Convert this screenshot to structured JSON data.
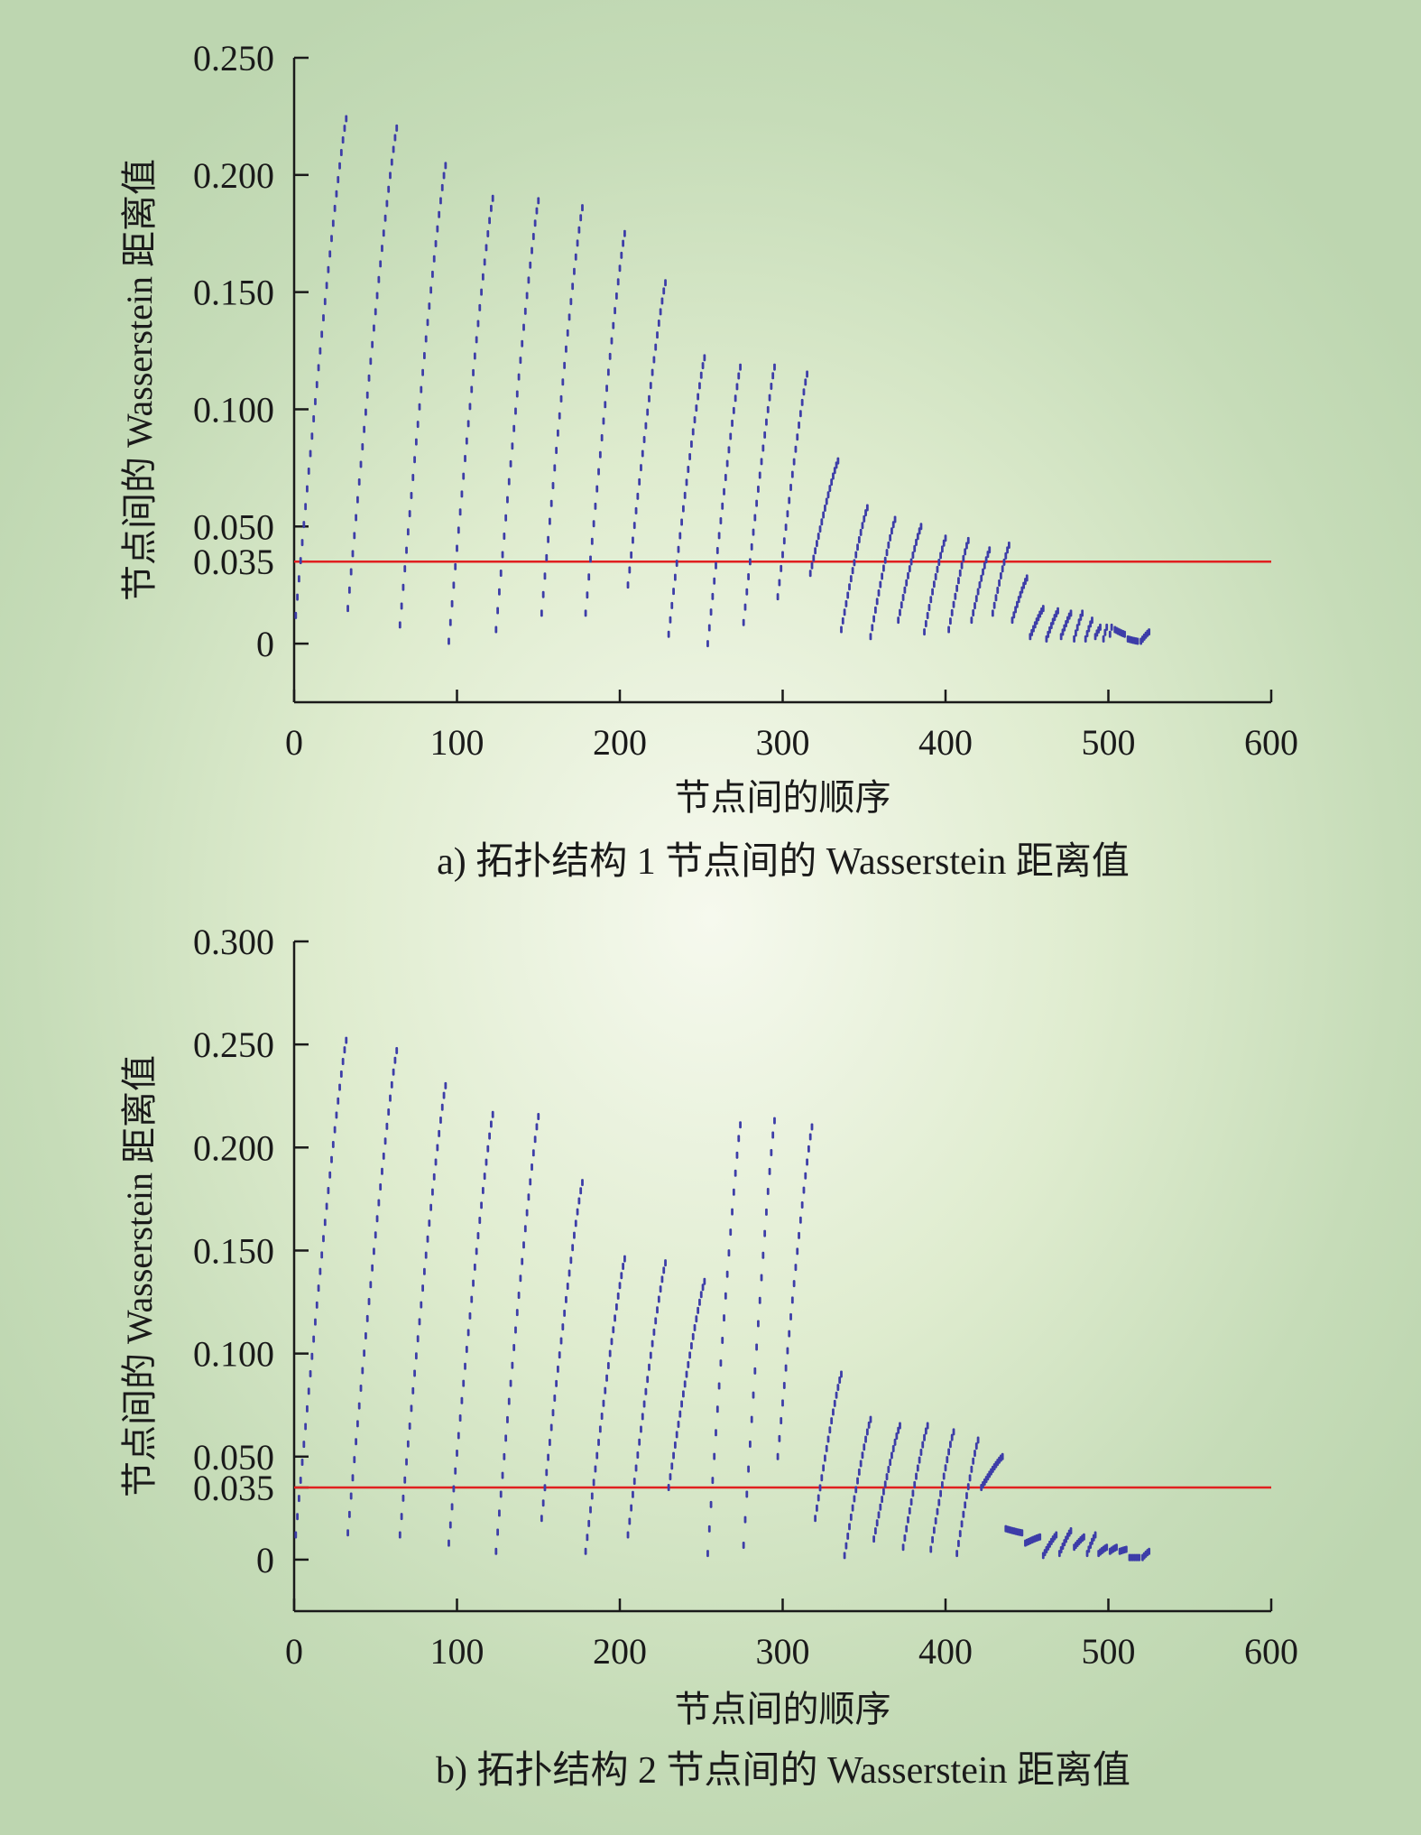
{
  "colors": {
    "point": "#3d3da8",
    "threshold": "#e02020",
    "axis": "#1a1a1a"
  },
  "chart_data": [
    {
      "type": "scatter",
      "caption": "a) 拓扑结构 1 节点间的 Wasserstein 距离值",
      "xlabel": "节点间的顺序",
      "ylabel": "节点间的 Wasserstein 距离值",
      "xlim": [
        0,
        600
      ],
      "ylim": [
        -0.025,
        0.25
      ],
      "xticks": [
        0,
        100,
        200,
        300,
        400,
        500,
        600
      ],
      "xtick_labels": [
        "0",
        "100",
        "200",
        "300",
        "400",
        "500",
        "600"
      ],
      "yticks": [
        0,
        0.035,
        0.05,
        0.1,
        0.15,
        0.2,
        0.25
      ],
      "ytick_labels": [
        "0",
        "0.035",
        "0.050",
        "0.100",
        "0.150",
        "0.200",
        "0.250"
      ],
      "threshold": 0.035,
      "grid": false,
      "segments": [
        {
          "x_start": 1,
          "x_end": 32,
          "y_start": 0.012,
          "y_peak": 0.224
        },
        {
          "x_start": 33,
          "x_end": 63,
          "y_start": 0.015,
          "y_peak": 0.22
        },
        {
          "x_start": 65,
          "x_end": 93,
          "y_start": 0.008,
          "y_peak": 0.204
        },
        {
          "x_start": 95,
          "x_end": 122,
          "y_start": 0.001,
          "y_peak": 0.19
        },
        {
          "x_start": 124,
          "x_end": 150,
          "y_start": 0.006,
          "y_peak": 0.189
        },
        {
          "x_start": 152,
          "x_end": 177,
          "y_start": 0.013,
          "y_peak": 0.186
        },
        {
          "x_start": 179,
          "x_end": 203,
          "y_start": 0.013,
          "y_peak": 0.175
        },
        {
          "x_start": 205,
          "x_end": 228,
          "y_start": 0.025,
          "y_peak": 0.154
        },
        {
          "x_start": 230,
          "x_end": 252,
          "y_start": 0.004,
          "y_peak": 0.122
        },
        {
          "x_start": 254,
          "x_end": 274,
          "y_start": 0.0,
          "y_peak": 0.118
        },
        {
          "x_start": 276,
          "x_end": 295,
          "y_start": 0.009,
          "y_peak": 0.118
        },
        {
          "x_start": 297,
          "x_end": 315,
          "y_start": 0.02,
          "y_peak": 0.115
        },
        {
          "x_start": 317,
          "x_end": 334,
          "y_start": 0.03,
          "y_peak": 0.078
        },
        {
          "x_start": 336,
          "x_end": 352,
          "y_start": 0.006,
          "y_peak": 0.058
        },
        {
          "x_start": 354,
          "x_end": 369,
          "y_start": 0.003,
          "y_peak": 0.053
        },
        {
          "x_start": 371,
          "x_end": 385,
          "y_start": 0.01,
          "y_peak": 0.05
        },
        {
          "x_start": 387,
          "x_end": 400,
          "y_start": 0.005,
          "y_peak": 0.045
        },
        {
          "x_start": 402,
          "x_end": 414,
          "y_start": 0.006,
          "y_peak": 0.044
        },
        {
          "x_start": 416,
          "x_end": 427,
          "y_start": 0.01,
          "y_peak": 0.04
        },
        {
          "x_start": 429,
          "x_end": 439,
          "y_start": 0.013,
          "y_peak": 0.042
        },
        {
          "x_start": 441,
          "x_end": 450,
          "y_start": 0.01,
          "y_peak": 0.028
        },
        {
          "x_start": 452,
          "x_end": 460,
          "y_start": 0.003,
          "y_peak": 0.015
        },
        {
          "x_start": 462,
          "x_end": 469,
          "y_start": 0.002,
          "y_peak": 0.014
        },
        {
          "x_start": 471,
          "x_end": 477,
          "y_start": 0.003,
          "y_peak": 0.013
        },
        {
          "x_start": 479,
          "x_end": 484,
          "y_start": 0.002,
          "y_peak": 0.013
        },
        {
          "x_start": 486,
          "x_end": 490,
          "y_start": 0.002,
          "y_peak": 0.01
        },
        {
          "x_start": 492,
          "x_end": 495,
          "y_start": 0.003,
          "y_peak": 0.007
        },
        {
          "x_start": 497,
          "x_end": 499,
          "y_start": 0.002,
          "y_peak": 0.007
        },
        {
          "x_start": 501,
          "x_end": 502,
          "y_start": 0.004,
          "y_peak": 0.007
        },
        {
          "x_start": 504,
          "x_end": 510,
          "y_start": 0.006,
          "y_peak": 0.004
        },
        {
          "x_start": 512,
          "x_end": 518,
          "y_start": 0.002,
          "y_peak": 0.001
        },
        {
          "x_start": 520,
          "x_end": 525,
          "y_start": 0.001,
          "y_peak": 0.005
        }
      ]
    },
    {
      "type": "scatter",
      "caption": "b) 拓扑结构 2 节点间的 Wasserstein 距离值",
      "xlabel": "节点间的顺序",
      "ylabel": "节点间的 Wasserstein 距离值",
      "xlim": [
        0,
        600
      ],
      "ylim": [
        -0.025,
        0.3
      ],
      "xticks": [
        0,
        100,
        200,
        300,
        400,
        500,
        600
      ],
      "xtick_labels": [
        "0",
        "100",
        "200",
        "300",
        "400",
        "500",
        "600"
      ],
      "yticks": [
        0,
        0.035,
        0.05,
        0.1,
        0.15,
        0.2,
        0.25,
        0.3
      ],
      "ytick_labels": [
        "0",
        "0.035",
        "0.050",
        "0.100",
        "0.150",
        "0.200",
        "0.250",
        "0.300"
      ],
      "threshold": 0.035,
      "grid": false,
      "segments": [
        {
          "x_start": 1,
          "x_end": 32,
          "y_start": 0.012,
          "y_peak": 0.252
        },
        {
          "x_start": 33,
          "x_end": 63,
          "y_start": 0.013,
          "y_peak": 0.247
        },
        {
          "x_start": 65,
          "x_end": 93,
          "y_start": 0.012,
          "y_peak": 0.23
        },
        {
          "x_start": 95,
          "x_end": 122,
          "y_start": 0.008,
          "y_peak": 0.216
        },
        {
          "x_start": 124,
          "x_end": 150,
          "y_start": 0.004,
          "y_peak": 0.215
        },
        {
          "x_start": 152,
          "x_end": 177,
          "y_start": 0.02,
          "y_peak": 0.183
        },
        {
          "x_start": 179,
          "x_end": 203,
          "y_start": 0.004,
          "y_peak": 0.146
        },
        {
          "x_start": 205,
          "x_end": 228,
          "y_start": 0.012,
          "y_peak": 0.144
        },
        {
          "x_start": 230,
          "x_end": 252,
          "y_start": 0.035,
          "y_peak": 0.135
        },
        {
          "x_start": 254,
          "x_end": 274,
          "y_start": 0.003,
          "y_peak": 0.211
        },
        {
          "x_start": 276,
          "x_end": 295,
          "y_start": 0.007,
          "y_peak": 0.213
        },
        {
          "x_start": 297,
          "x_end": 318,
          "y_start": 0.05,
          "y_peak": 0.21
        },
        {
          "x_start": 320,
          "x_end": 336,
          "y_start": 0.02,
          "y_peak": 0.09
        },
        {
          "x_start": 338,
          "x_end": 354,
          "y_start": 0.002,
          "y_peak": 0.068
        },
        {
          "x_start": 356,
          "x_end": 372,
          "y_start": 0.01,
          "y_peak": 0.065
        },
        {
          "x_start": 374,
          "x_end": 389,
          "y_start": 0.006,
          "y_peak": 0.065
        },
        {
          "x_start": 391,
          "x_end": 405,
          "y_start": 0.005,
          "y_peak": 0.062
        },
        {
          "x_start": 407,
          "x_end": 420,
          "y_start": 0.003,
          "y_peak": 0.058
        },
        {
          "x_start": 422,
          "x_end": 435,
          "y_start": 0.035,
          "y_peak": 0.05
        },
        {
          "x_start": 437,
          "x_end": 447,
          "y_start": 0.015,
          "y_peak": 0.013
        },
        {
          "x_start": 449,
          "x_end": 458,
          "y_start": 0.008,
          "y_peak": 0.011
        },
        {
          "x_start": 460,
          "x_end": 468,
          "y_start": 0.002,
          "y_peak": 0.012
        },
        {
          "x_start": 470,
          "x_end": 477,
          "y_start": 0.003,
          "y_peak": 0.014
        },
        {
          "x_start": 479,
          "x_end": 485,
          "y_start": 0.006,
          "y_peak": 0.011
        },
        {
          "x_start": 487,
          "x_end": 492,
          "y_start": 0.003,
          "y_peak": 0.012
        },
        {
          "x_start": 494,
          "x_end": 499,
          "y_start": 0.003,
          "y_peak": 0.006
        },
        {
          "x_start": 501,
          "x_end": 505,
          "y_start": 0.004,
          "y_peak": 0.006
        },
        {
          "x_start": 507,
          "x_end": 511,
          "y_start": 0.004,
          "y_peak": 0.005
        },
        {
          "x_start": 513,
          "x_end": 519,
          "y_start": 0.001,
          "y_peak": 0.001
        },
        {
          "x_start": 521,
          "x_end": 525,
          "y_start": 0.001,
          "y_peak": 0.004
        }
      ]
    }
  ]
}
